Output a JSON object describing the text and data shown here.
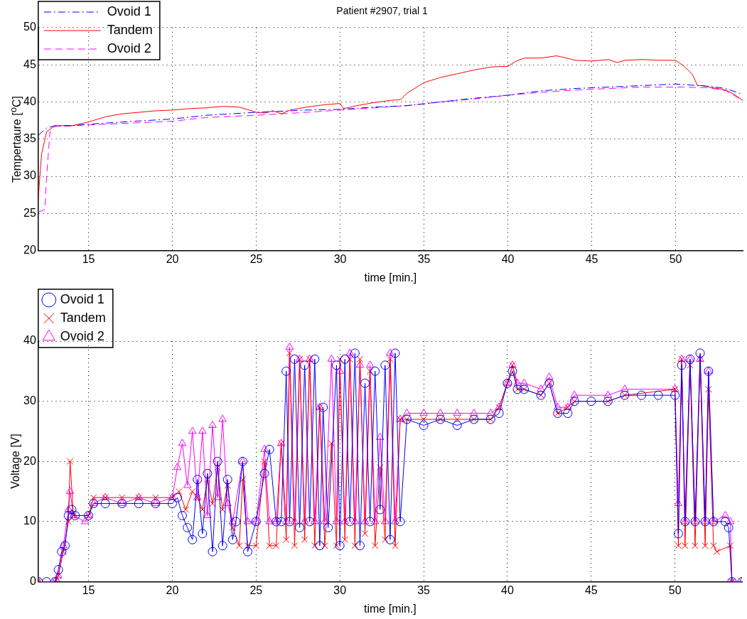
{
  "chart_data": [
    {
      "type": "line",
      "title": "Patient #2907, trial 1",
      "xlabel": "time [min.]",
      "ylabel": "Tempertaure [$^{o}$C]",
      "xlim": [
        12,
        54
      ],
      "ylim": [
        20,
        50
      ],
      "xticks": [
        15,
        20,
        25,
        30,
        35,
        40,
        45,
        50
      ],
      "yticks": [
        20,
        25,
        30,
        35,
        40,
        45,
        50
      ],
      "grid": true,
      "legend": "top left",
      "marker": "none",
      "series": [
        {
          "name": "Ovoid 1",
          "color": "#0000ff",
          "line_style": "dashdot",
          "x": [
            12,
            12.5,
            13,
            14,
            15,
            17,
            20,
            22,
            25,
            28,
            30,
            32,
            34,
            36,
            38,
            40,
            42,
            44,
            46,
            48,
            50,
            52,
            53,
            54
          ],
          "values": [
            35.5,
            36.5,
            36.8,
            36.8,
            37,
            37.3,
            37.7,
            38.2,
            38.6,
            38.9,
            39,
            39.3,
            39.5,
            40,
            40.5,
            40.9,
            41.5,
            41.8,
            42,
            42.2,
            42.4,
            42.1,
            41.8,
            41
          ]
        },
        {
          "name": "Tandem",
          "color": "#ff0000",
          "line_style": "solid",
          "x": [
            12,
            12.2,
            12.5,
            13,
            14,
            15,
            16,
            17,
            18,
            19,
            20,
            21,
            22,
            23,
            24,
            25,
            25.5,
            26,
            26.5,
            27,
            28,
            29,
            30,
            30.2,
            31,
            32,
            33,
            33.6,
            34,
            35,
            36,
            37,
            38,
            39,
            40,
            40.5,
            41,
            42,
            42.9,
            43.5,
            44,
            45,
            46,
            46.5,
            47,
            48,
            49,
            50,
            50.5,
            51,
            51.3,
            51.6,
            52,
            53,
            53.5,
            54
          ],
          "values": [
            27,
            33,
            36,
            36.8,
            36.8,
            37.3,
            38,
            38.4,
            38.6,
            38.8,
            38.9,
            39.1,
            39.2,
            39.4,
            39.3,
            38.6,
            38.5,
            38.8,
            38.4,
            38.9,
            39.3,
            39.6,
            39.8,
            39.1,
            39.5,
            39.9,
            40.2,
            40.3,
            41.2,
            42.6,
            43.3,
            43.8,
            44.3,
            44.7,
            44.8,
            45.5,
            45.9,
            45.9,
            46.2,
            45.9,
            45.6,
            45.5,
            45.7,
            45.3,
            45.6,
            45.7,
            45.6,
            45.6,
            44.8,
            43.7,
            42.2,
            42.2,
            42,
            41.6,
            41,
            40.2
          ]
        },
        {
          "name": "Ovoid 2",
          "color": "#ff00ff",
          "line_style": "dashed",
          "x": [
            12,
            12.4,
            12.5,
            12.7,
            13,
            15,
            17,
            20,
            22,
            25,
            28,
            30,
            32,
            34,
            36,
            38,
            40,
            42,
            44,
            46,
            48,
            50,
            52,
            53,
            54
          ],
          "values": [
            25.2,
            25.5,
            30,
            36,
            36.7,
            36.9,
            37.1,
            37.4,
            37.9,
            38.2,
            38.6,
            38.9,
            39.2,
            39.5,
            40,
            40.4,
            40.9,
            41.3,
            41.6,
            41.8,
            42,
            42,
            41.9,
            41.5,
            40.2
          ]
        }
      ]
    },
    {
      "type": "line",
      "xlabel": "time [min.]",
      "ylabel": "Voltage [V]",
      "xlim": [
        12,
        54
      ],
      "ylim": [
        0,
        40
      ],
      "xticks": [
        15,
        20,
        25,
        30,
        35,
        40,
        45,
        50
      ],
      "yticks": [
        0,
        10,
        20,
        30,
        40
      ],
      "grid": true,
      "legend": "top left",
      "line_style": "solid",
      "series": [
        {
          "name": "Ovoid 1",
          "color": "#0000ff",
          "marker": "circle",
          "x": [
            12,
            12.5,
            13,
            13.2,
            13.4,
            13.6,
            13.8,
            14,
            14.2,
            15,
            15.3,
            16,
            17,
            18,
            19,
            20,
            20.3,
            20.6,
            20.9,
            21.2,
            21.5,
            21.8,
            22.1,
            22.4,
            22.7,
            23,
            23.3,
            23.6,
            23.8,
            24.2,
            24.5,
            25,
            25.5,
            25.8,
            26.2,
            26.5,
            26.8,
            27,
            27.3,
            27.6,
            27.9,
            28.2,
            28.5,
            28.8,
            29,
            29.3,
            29.8,
            30,
            30.3,
            30.6,
            30.9,
            31.2,
            31.5,
            31.8,
            32.1,
            32.4,
            32.7,
            33,
            33.3,
            33.6,
            34,
            35,
            36,
            37,
            38,
            39,
            39.5,
            40,
            40.3,
            40.6,
            41,
            42,
            42.5,
            43,
            43.6,
            44,
            45,
            46,
            47,
            48,
            49,
            50,
            50.2,
            50.4,
            50.6,
            50.9,
            51.2,
            51.5,
            51.8,
            52,
            52.3,
            53,
            53.2,
            53.4,
            54
          ],
          "values": [
            0,
            0,
            0,
            2,
            5,
            6,
            11,
            12,
            11,
            11,
            13,
            13,
            13,
            13,
            13,
            13,
            14,
            11,
            9,
            7,
            17,
            8,
            18,
            5,
            20,
            6,
            17,
            7,
            10,
            20,
            5,
            10,
            18,
            22,
            10,
            10,
            35,
            10,
            37,
            9,
            36,
            10,
            37,
            6,
            29,
            9,
            36,
            6,
            37,
            10,
            38,
            6,
            33,
            10,
            35,
            12,
            36,
            7,
            38,
            10,
            27,
            26,
            27,
            26,
            27,
            27,
            28,
            33,
            35,
            32,
            32,
            31,
            33,
            28,
            28,
            30,
            30,
            30,
            31,
            31,
            31,
            31,
            8,
            36,
            10,
            37,
            10,
            38,
            10,
            35,
            10,
            10,
            9,
            0,
            0
          ]
        },
        {
          "name": "Tandem",
          "color": "#ff0000",
          "marker": "cross",
          "x": [
            12,
            13,
            13.2,
            13.5,
            13.8,
            13.9,
            14.1,
            15,
            15.3,
            16,
            17,
            18,
            19,
            20,
            20.4,
            20.8,
            21.2,
            21.5,
            21.8,
            22.1,
            22.4,
            22.7,
            23,
            23.3,
            23.6,
            24,
            24.2,
            24.5,
            25,
            25.5,
            25.8,
            26.2,
            26.5,
            26.8,
            27,
            27.3,
            27.6,
            27.9,
            28.2,
            28.5,
            28.8,
            29.1,
            29.5,
            29.8,
            30,
            30.3,
            30.6,
            30.9,
            31.2,
            31.5,
            31.8,
            32.1,
            32.4,
            32.7,
            33,
            33.3,
            33.6,
            34,
            35,
            36,
            37,
            38,
            39,
            39.5,
            40,
            40.3,
            40.6,
            41,
            42,
            42.5,
            43,
            43.6,
            44,
            46,
            47,
            50,
            50.2,
            50.4,
            50.6,
            50.9,
            51.2,
            51.5,
            51.8,
            52,
            52.3,
            52.5,
            53.3,
            53.4,
            54
          ],
          "values": [
            0,
            0,
            1,
            5,
            10,
            20,
            11,
            11,
            14,
            14,
            14,
            14,
            14,
            14,
            15,
            12,
            15,
            14,
            12,
            17,
            13,
            19,
            12,
            16,
            9,
            6,
            17,
            6,
            6,
            20,
            6,
            6,
            23,
            7,
            38,
            6,
            37,
            7,
            37,
            6,
            29,
            6,
            23,
            6,
            37,
            7,
            37,
            6,
            37,
            8,
            35,
            6,
            19,
            7,
            37,
            6,
            27,
            27,
            27,
            27,
            27,
            27,
            27,
            29,
            33,
            36,
            32,
            32,
            31,
            33,
            28,
            29,
            30,
            30,
            31,
            32,
            6,
            37,
            6,
            36,
            6,
            37,
            6,
            32,
            6,
            5,
            6,
            0,
            0
          ]
        },
        {
          "name": "Ovoid 2",
          "color": "#ff00ff",
          "marker": "triangle",
          "x": [
            12,
            13,
            13.2,
            13.5,
            13.8,
            13.9,
            14.1,
            14.8,
            15,
            15.3,
            16,
            17,
            18,
            19,
            20,
            20.3,
            20.6,
            20.9,
            21.2,
            21.5,
            21.8,
            22.1,
            22.4,
            22.7,
            23,
            23.3,
            23.6,
            24.2,
            24.5,
            25,
            25.5,
            25.8,
            26.2,
            26.5,
            26.8,
            27,
            27.3,
            27.6,
            27.9,
            28.2,
            28.5,
            28.8,
            29.1,
            29.5,
            29.8,
            30,
            30.3,
            30.6,
            30.9,
            31.2,
            31.5,
            31.8,
            32.1,
            32.4,
            32.7,
            33,
            33.3,
            33.6,
            34,
            35,
            36,
            37,
            38,
            39,
            39.5,
            40,
            40.3,
            40.6,
            41,
            42,
            42.5,
            43,
            43.6,
            44,
            46,
            47,
            50,
            50.2,
            50.4,
            50.6,
            50.9,
            51.2,
            51.5,
            51.8,
            52,
            52.3,
            53,
            53.3,
            53.4,
            54
          ],
          "values": [
            0,
            0,
            1,
            6,
            12,
            15,
            11,
            10,
            11,
            13,
            14,
            13,
            14,
            13,
            14,
            19,
            23,
            16,
            25,
            14,
            25,
            11,
            26,
            14,
            27,
            13,
            10,
            20,
            10,
            10,
            22,
            10,
            10,
            23,
            10,
            39,
            10,
            37,
            10,
            37,
            10,
            29,
            10,
            37,
            10,
            35,
            10,
            38,
            10,
            36,
            10,
            36,
            10,
            24,
            10,
            38,
            10,
            27,
            28,
            28,
            28,
            28,
            28,
            28,
            29,
            33,
            36,
            33,
            33,
            32,
            34,
            29,
            29,
            31,
            31,
            32,
            32,
            13,
            37,
            10,
            37,
            10,
            37,
            10,
            35,
            10,
            11,
            10,
            0,
            0
          ]
        }
      ]
    }
  ]
}
